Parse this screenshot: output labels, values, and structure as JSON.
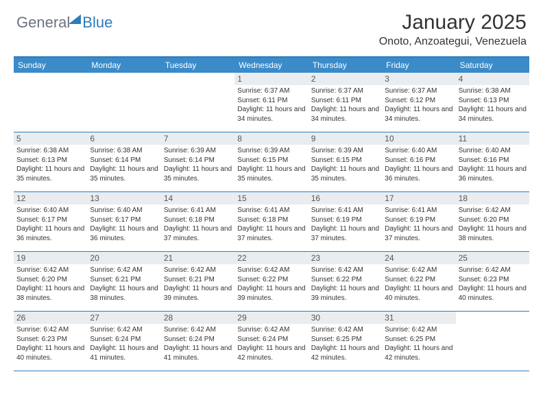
{
  "logo": {
    "text1": "General",
    "text2": "Blue"
  },
  "title": "January 2025",
  "location": "Onoto, Anzoategui, Venezuela",
  "colors": {
    "header_bg": "#3b8bc9",
    "border": "#2b7bbf",
    "daynum_bg": "#e9edf0",
    "text": "#333333",
    "logo_gray": "#6b7280"
  },
  "weekdays": [
    "Sunday",
    "Monday",
    "Tuesday",
    "Wednesday",
    "Thursday",
    "Friday",
    "Saturday"
  ],
  "weeks": [
    [
      {
        "empty": true
      },
      {
        "empty": true
      },
      {
        "empty": true
      },
      {
        "day": "1",
        "sunrise": "Sunrise: 6:37 AM",
        "sunset": "Sunset: 6:11 PM",
        "daylight": "Daylight: 11 hours and 34 minutes."
      },
      {
        "day": "2",
        "sunrise": "Sunrise: 6:37 AM",
        "sunset": "Sunset: 6:11 PM",
        "daylight": "Daylight: 11 hours and 34 minutes."
      },
      {
        "day": "3",
        "sunrise": "Sunrise: 6:37 AM",
        "sunset": "Sunset: 6:12 PM",
        "daylight": "Daylight: 11 hours and 34 minutes."
      },
      {
        "day": "4",
        "sunrise": "Sunrise: 6:38 AM",
        "sunset": "Sunset: 6:13 PM",
        "daylight": "Daylight: 11 hours and 34 minutes."
      }
    ],
    [
      {
        "day": "5",
        "sunrise": "Sunrise: 6:38 AM",
        "sunset": "Sunset: 6:13 PM",
        "daylight": "Daylight: 11 hours and 35 minutes."
      },
      {
        "day": "6",
        "sunrise": "Sunrise: 6:38 AM",
        "sunset": "Sunset: 6:14 PM",
        "daylight": "Daylight: 11 hours and 35 minutes."
      },
      {
        "day": "7",
        "sunrise": "Sunrise: 6:39 AM",
        "sunset": "Sunset: 6:14 PM",
        "daylight": "Daylight: 11 hours and 35 minutes."
      },
      {
        "day": "8",
        "sunrise": "Sunrise: 6:39 AM",
        "sunset": "Sunset: 6:15 PM",
        "daylight": "Daylight: 11 hours and 35 minutes."
      },
      {
        "day": "9",
        "sunrise": "Sunrise: 6:39 AM",
        "sunset": "Sunset: 6:15 PM",
        "daylight": "Daylight: 11 hours and 35 minutes."
      },
      {
        "day": "10",
        "sunrise": "Sunrise: 6:40 AM",
        "sunset": "Sunset: 6:16 PM",
        "daylight": "Daylight: 11 hours and 36 minutes."
      },
      {
        "day": "11",
        "sunrise": "Sunrise: 6:40 AM",
        "sunset": "Sunset: 6:16 PM",
        "daylight": "Daylight: 11 hours and 36 minutes."
      }
    ],
    [
      {
        "day": "12",
        "sunrise": "Sunrise: 6:40 AM",
        "sunset": "Sunset: 6:17 PM",
        "daylight": "Daylight: 11 hours and 36 minutes."
      },
      {
        "day": "13",
        "sunrise": "Sunrise: 6:40 AM",
        "sunset": "Sunset: 6:17 PM",
        "daylight": "Daylight: 11 hours and 36 minutes."
      },
      {
        "day": "14",
        "sunrise": "Sunrise: 6:41 AM",
        "sunset": "Sunset: 6:18 PM",
        "daylight": "Daylight: 11 hours and 37 minutes."
      },
      {
        "day": "15",
        "sunrise": "Sunrise: 6:41 AM",
        "sunset": "Sunset: 6:18 PM",
        "daylight": "Daylight: 11 hours and 37 minutes."
      },
      {
        "day": "16",
        "sunrise": "Sunrise: 6:41 AM",
        "sunset": "Sunset: 6:19 PM",
        "daylight": "Daylight: 11 hours and 37 minutes."
      },
      {
        "day": "17",
        "sunrise": "Sunrise: 6:41 AM",
        "sunset": "Sunset: 6:19 PM",
        "daylight": "Daylight: 11 hours and 37 minutes."
      },
      {
        "day": "18",
        "sunrise": "Sunrise: 6:42 AM",
        "sunset": "Sunset: 6:20 PM",
        "daylight": "Daylight: 11 hours and 38 minutes."
      }
    ],
    [
      {
        "day": "19",
        "sunrise": "Sunrise: 6:42 AM",
        "sunset": "Sunset: 6:20 PM",
        "daylight": "Daylight: 11 hours and 38 minutes."
      },
      {
        "day": "20",
        "sunrise": "Sunrise: 6:42 AM",
        "sunset": "Sunset: 6:21 PM",
        "daylight": "Daylight: 11 hours and 38 minutes."
      },
      {
        "day": "21",
        "sunrise": "Sunrise: 6:42 AM",
        "sunset": "Sunset: 6:21 PM",
        "daylight": "Daylight: 11 hours and 39 minutes."
      },
      {
        "day": "22",
        "sunrise": "Sunrise: 6:42 AM",
        "sunset": "Sunset: 6:22 PM",
        "daylight": "Daylight: 11 hours and 39 minutes."
      },
      {
        "day": "23",
        "sunrise": "Sunrise: 6:42 AM",
        "sunset": "Sunset: 6:22 PM",
        "daylight": "Daylight: 11 hours and 39 minutes."
      },
      {
        "day": "24",
        "sunrise": "Sunrise: 6:42 AM",
        "sunset": "Sunset: 6:22 PM",
        "daylight": "Daylight: 11 hours and 40 minutes."
      },
      {
        "day": "25",
        "sunrise": "Sunrise: 6:42 AM",
        "sunset": "Sunset: 6:23 PM",
        "daylight": "Daylight: 11 hours and 40 minutes."
      }
    ],
    [
      {
        "day": "26",
        "sunrise": "Sunrise: 6:42 AM",
        "sunset": "Sunset: 6:23 PM",
        "daylight": "Daylight: 11 hours and 40 minutes."
      },
      {
        "day": "27",
        "sunrise": "Sunrise: 6:42 AM",
        "sunset": "Sunset: 6:24 PM",
        "daylight": "Daylight: 11 hours and 41 minutes."
      },
      {
        "day": "28",
        "sunrise": "Sunrise: 6:42 AM",
        "sunset": "Sunset: 6:24 PM",
        "daylight": "Daylight: 11 hours and 41 minutes."
      },
      {
        "day": "29",
        "sunrise": "Sunrise: 6:42 AM",
        "sunset": "Sunset: 6:24 PM",
        "daylight": "Daylight: 11 hours and 42 minutes."
      },
      {
        "day": "30",
        "sunrise": "Sunrise: 6:42 AM",
        "sunset": "Sunset: 6:25 PM",
        "daylight": "Daylight: 11 hours and 42 minutes."
      },
      {
        "day": "31",
        "sunrise": "Sunrise: 6:42 AM",
        "sunset": "Sunset: 6:25 PM",
        "daylight": "Daylight: 11 hours and 42 minutes."
      },
      {
        "empty": true
      }
    ]
  ]
}
